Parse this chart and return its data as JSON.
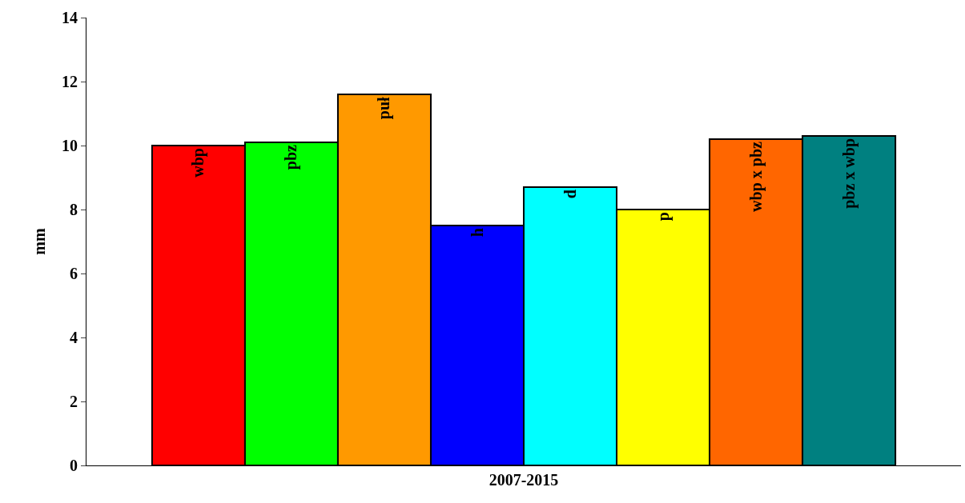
{
  "chart_data": {
    "type": "bar",
    "categories": [
      "2007-2015"
    ],
    "ylabel": "mm",
    "ylim": [
      0,
      14
    ],
    "yticks": [
      0,
      2,
      4,
      6,
      8,
      10,
      12,
      14
    ],
    "legend": false,
    "series": [
      {
        "name": "wbp",
        "color": "#ff0000",
        "values": [
          10.0
        ]
      },
      {
        "name": "pbz",
        "color": "#00ff00",
        "values": [
          10.1
        ]
      },
      {
        "name": "puł",
        "color": "#ff9900",
        "values": [
          11.6
        ]
      },
      {
        "name": "h",
        "color": "#0000ff",
        "values": [
          7.5
        ]
      },
      {
        "name": "d",
        "color": "#00ffff",
        "values": [
          8.7
        ]
      },
      {
        "name": "p",
        "color": "#ffff00",
        "values": [
          8.0
        ]
      },
      {
        "name": "wbp x pbz",
        "color": "#ff6600",
        "values": [
          10.2
        ]
      },
      {
        "name": "pbz x wbp",
        "color": "#008080",
        "values": [
          10.3
        ]
      }
    ]
  }
}
